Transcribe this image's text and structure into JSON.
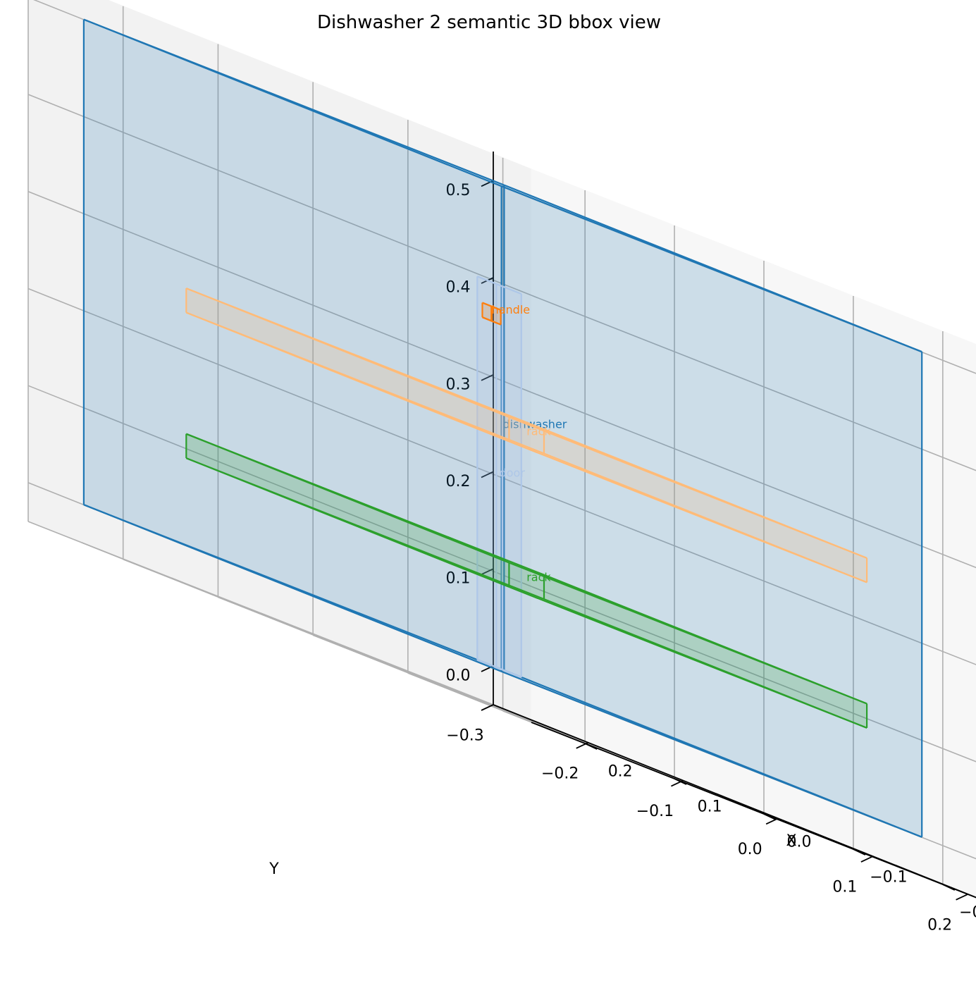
{
  "chart_data": {
    "type": "3d-bbox",
    "title": "Dishwasher 2 semantic 3D bbox view",
    "xlabel": "X",
    "ylabel": "Y",
    "zlabel": "",
    "xlim": [
      -0.26,
      0.26
    ],
    "ylim": [
      -0.3,
      0.23
    ],
    "zlim": [
      -0.04,
      0.53
    ],
    "xticks": [
      "−0.2",
      "−0.1",
      "0.0",
      "0.1",
      "0.2"
    ],
    "yticks": [
      "−0.3",
      "−0.2",
      "−0.1",
      "0.0",
      "0.1",
      "0.2"
    ],
    "zticks": [
      "0.0",
      "0.1",
      "0.2",
      "0.3",
      "0.4",
      "0.5"
    ],
    "grid": true,
    "boxes": [
      {
        "label": "dishwasher",
        "color": "#1f77b4",
        "min": [
          -0.235,
          -0.265,
          0.0
        ],
        "max": [
          0.235,
          0.175,
          0.5
        ]
      },
      {
        "label": "door",
        "color": "#aec7e8",
        "min": [
          -0.233,
          -0.265,
          0.0
        ],
        "max": [
          -0.205,
          -0.245,
          0.395
        ]
      },
      {
        "label": "handle",
        "color": "#ff7f0e",
        "min": [
          -0.21,
          -0.255,
          0.355
        ],
        "max": [
          -0.2,
          -0.245,
          0.37
        ]
      },
      {
        "label": "rack",
        "color": "#ffbb78",
        "min": [
          -0.2,
          -0.19,
          0.24
        ],
        "max": [
          0.2,
          0.15,
          0.265
        ]
      },
      {
        "label": "rack",
        "color": "#2ca02c",
        "min": [
          -0.2,
          -0.19,
          0.09
        ],
        "max": [
          0.2,
          0.15,
          0.115
        ]
      }
    ]
  }
}
